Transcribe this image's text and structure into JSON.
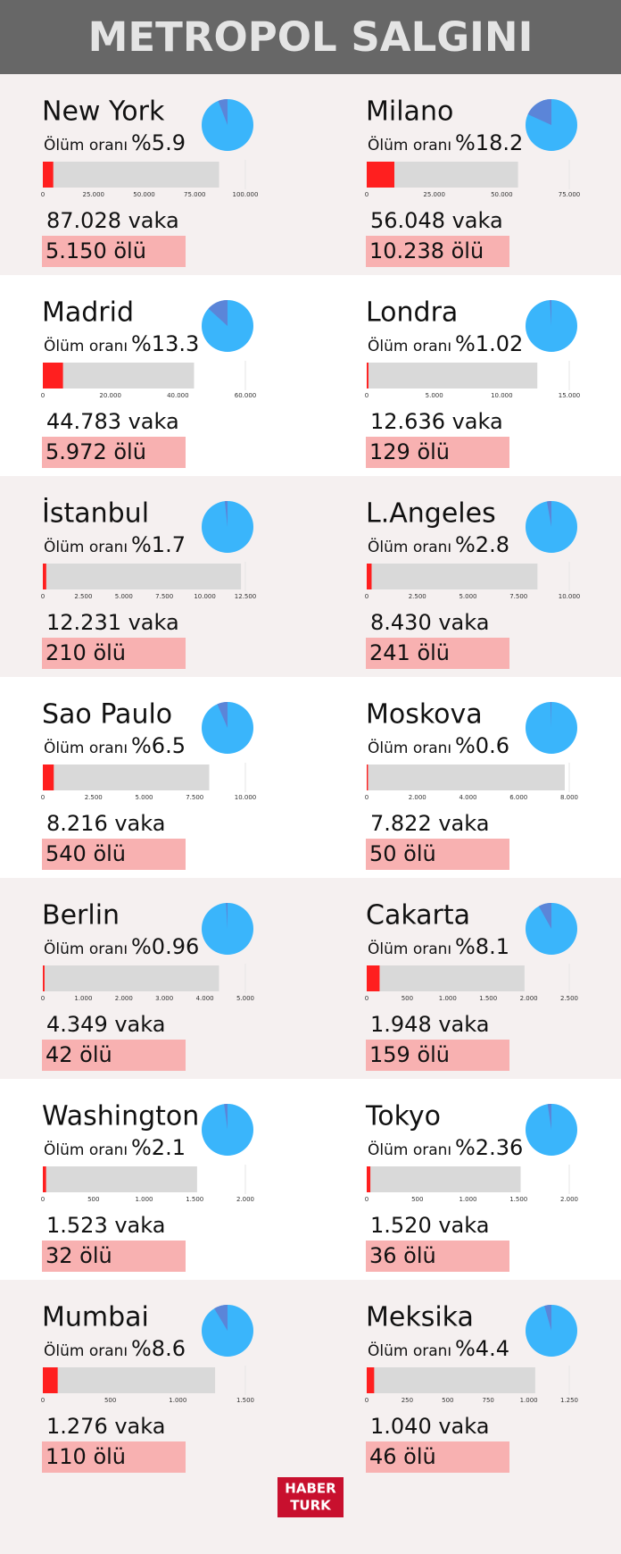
{
  "title": "METROPOL SALGINI",
  "logo": [
    "HABER",
    "TURK"
  ],
  "chart_data": [
    {
      "type": "bar",
      "title": "New York",
      "subtitle": "Ölüm oranı",
      "xlim": [
        0,
        100000
      ],
      "xticks": [
        0,
        {
          "value": 25000,
          "label": "25.000"
        },
        {
          "value": 50000,
          "label": "50.000"
        },
        {
          "value": 75000,
          "label": "75.000"
        },
        {
          "value": 100000,
          "label": "100.000"
        }
      ],
      "series": [
        {
          "color": "#d9d9d9",
          "values": [
            87028
          ],
          "value_labels": [
            "87.028 vaka"
          ]
        },
        {
          "color": "#ff1f1f",
          "values": [
            5150
          ],
          "value_labels": [
            "5.150 ölü"
          ]
        }
      ],
      "pie": {
        "values": [
          5.9
        ],
        "value_labels": [
          "%5.9"
        ],
        "colors": [
          "#5b85d8",
          "#3ab5fb"
        ]
      }
    },
    {
      "type": "bar",
      "title": "Milano",
      "subtitle": "Ölüm oranı",
      "xlim": [
        0,
        75000
      ],
      "xticks": [
        0,
        {
          "value": 25000,
          "label": "25.000"
        },
        {
          "value": 50000,
          "label": "50.000"
        },
        {
          "value": 75000,
          "label": "75.000"
        }
      ],
      "series": [
        {
          "color": "#d9d9d9",
          "values": [
            56048
          ],
          "value_labels": [
            "56.048 vaka"
          ]
        },
        {
          "color": "#ff1f1f",
          "values": [
            10238
          ],
          "value_labels": [
            "10.238 ölü"
          ]
        }
      ],
      "pie": {
        "values": [
          18.2
        ],
        "value_labels": [
          "%18.2"
        ],
        "colors": [
          "#5b85d8",
          "#3ab5fb"
        ]
      }
    },
    {
      "type": "bar",
      "title": "Madrid",
      "subtitle": "Ölüm oranı",
      "xlim": [
        0,
        60000
      ],
      "xticks": [
        0,
        {
          "value": 20000,
          "label": "20.000"
        },
        {
          "value": 40000,
          "label": "40.000"
        },
        {
          "value": 60000,
          "label": "60.000"
        }
      ],
      "series": [
        {
          "color": "#d9d9d9",
          "values": [
            44783
          ],
          "value_labels": [
            "44.783 vaka"
          ]
        },
        {
          "color": "#ff1f1f",
          "values": [
            5972
          ],
          "value_labels": [
            "5.972 ölü"
          ]
        }
      ],
      "pie": {
        "values": [
          13.3
        ],
        "value_labels": [
          "%13.3"
        ],
        "colors": [
          "#5b85d8",
          "#3ab5fb"
        ]
      }
    },
    {
      "type": "bar",
      "title": "Londra",
      "subtitle": "Ölüm oranı",
      "xlim": [
        0,
        15000
      ],
      "xticks": [
        0,
        {
          "value": 5000,
          "label": "5.000"
        },
        {
          "value": 10000,
          "label": "10.000"
        },
        {
          "value": 15000,
          "label": "15.000"
        }
      ],
      "series": [
        {
          "color": "#d9d9d9",
          "values": [
            12636
          ],
          "value_labels": [
            "12.636 vaka"
          ]
        },
        {
          "color": "#ff1f1f",
          "values": [
            129
          ],
          "value_labels": [
            "129 ölü"
          ]
        }
      ],
      "pie": {
        "values": [
          1.02
        ],
        "value_labels": [
          "%1.02"
        ],
        "colors": [
          "#5b85d8",
          "#3ab5fb"
        ]
      }
    },
    {
      "type": "bar",
      "title": "İstanbul",
      "subtitle": "Ölüm oranı",
      "xlim": [
        0,
        12500
      ],
      "xticks": [
        0,
        {
          "value": 2500,
          "label": "2.500"
        },
        {
          "value": 5000,
          "label": "5.000"
        },
        {
          "value": 7500,
          "label": "7.500"
        },
        {
          "value": 10000,
          "label": "10.000"
        },
        {
          "value": 12500,
          "label": "12.500"
        }
      ],
      "series": [
        {
          "color": "#d9d9d9",
          "values": [
            12231
          ],
          "value_labels": [
            "12.231 vaka"
          ]
        },
        {
          "color": "#ff1f1f",
          "values": [
            210
          ],
          "value_labels": [
            "210 ölü"
          ]
        }
      ],
      "pie": {
        "values": [
          1.7
        ],
        "value_labels": [
          "%1.7"
        ],
        "colors": [
          "#5b85d8",
          "#3ab5fb"
        ]
      }
    },
    {
      "type": "bar",
      "title": "L.Angeles",
      "subtitle": "Ölüm oranı",
      "xlim": [
        0,
        10000
      ],
      "xticks": [
        0,
        {
          "value": 2500,
          "label": "2.500"
        },
        {
          "value": 5000,
          "label": "5.000"
        },
        {
          "value": 7500,
          "label": "7.500"
        },
        {
          "value": 10000,
          "label": "10.000"
        }
      ],
      "series": [
        {
          "color": "#d9d9d9",
          "values": [
            8430
          ],
          "value_labels": [
            "8.430 vaka"
          ]
        },
        {
          "color": "#ff1f1f",
          "values": [
            241
          ],
          "value_labels": [
            "241 ölü"
          ]
        }
      ],
      "pie": {
        "values": [
          2.8
        ],
        "value_labels": [
          "%2.8"
        ],
        "colors": [
          "#5b85d8",
          "#3ab5fb"
        ]
      }
    },
    {
      "type": "bar",
      "title": "Sao Paulo",
      "subtitle": "Ölüm oranı",
      "xlim": [
        0,
        10000
      ],
      "xticks": [
        0,
        {
          "value": 2500,
          "label": "2.500"
        },
        {
          "value": 5000,
          "label": "5.000"
        },
        {
          "value": 7500,
          "label": "7.500"
        },
        {
          "value": 10000,
          "label": "10.000"
        }
      ],
      "series": [
        {
          "color": "#d9d9d9",
          "values": [
            8216
          ],
          "value_labels": [
            "8.216 vaka"
          ]
        },
        {
          "color": "#ff1f1f",
          "values": [
            540
          ],
          "value_labels": [
            "540 ölü"
          ]
        }
      ],
      "pie": {
        "values": [
          6.5
        ],
        "value_labels": [
          "%6.5"
        ],
        "colors": [
          "#5b85d8",
          "#3ab5fb"
        ]
      }
    },
    {
      "type": "bar",
      "title": "Moskova",
      "subtitle": "Ölüm oranı",
      "xlim": [
        0,
        8000
      ],
      "xticks": [
        0,
        {
          "value": 2000,
          "label": "2.000"
        },
        {
          "value": 4000,
          "label": "4.000"
        },
        {
          "value": 6000,
          "label": "6.000"
        },
        {
          "value": 8000,
          "label": "8.000"
        }
      ],
      "series": [
        {
          "color": "#d9d9d9",
          "values": [
            7822
          ],
          "value_labels": [
            "7.822 vaka"
          ]
        },
        {
          "color": "#ff1f1f",
          "values": [
            50
          ],
          "value_labels": [
            "50 ölü"
          ]
        }
      ],
      "pie": {
        "values": [
          0.6
        ],
        "value_labels": [
          "%0.6"
        ],
        "colors": [
          "#5b85d8",
          "#3ab5fb"
        ]
      }
    },
    {
      "type": "bar",
      "title": "Berlin",
      "subtitle": "Ölüm oranı",
      "xlim": [
        0,
        5000
      ],
      "xticks": [
        0,
        {
          "value": 1000,
          "label": "1.000"
        },
        {
          "value": 2000,
          "label": "2.000"
        },
        {
          "value": 3000,
          "label": "3.000"
        },
        {
          "value": 4000,
          "label": "4.000"
        },
        {
          "value": 5000,
          "label": "5.000"
        }
      ],
      "series": [
        {
          "color": "#d9d9d9",
          "values": [
            4349
          ],
          "value_labels": [
            "4.349 vaka"
          ]
        },
        {
          "color": "#ff1f1f",
          "values": [
            42
          ],
          "value_labels": [
            "42 ölü"
          ]
        }
      ],
      "pie": {
        "values": [
          0.96
        ],
        "value_labels": [
          "%0.96"
        ],
        "colors": [
          "#5b85d8",
          "#3ab5fb"
        ]
      }
    },
    {
      "type": "bar",
      "title": "Cakarta",
      "subtitle": "Ölüm oranı",
      "xlim": [
        0,
        2500
      ],
      "xticks": [
        0,
        500,
        {
          "value": 1000,
          "label": "1.000"
        },
        {
          "value": 1500,
          "label": "1.500"
        },
        {
          "value": 2000,
          "label": "2.000"
        },
        {
          "value": 2500,
          "label": "2.500"
        }
      ],
      "series": [
        {
          "color": "#d9d9d9",
          "values": [
            1948
          ],
          "value_labels": [
            "1.948 vaka"
          ]
        },
        {
          "color": "#ff1f1f",
          "values": [
            159
          ],
          "value_labels": [
            "159 ölü"
          ]
        }
      ],
      "pie": {
        "values": [
          8.1
        ],
        "value_labels": [
          "%8.1"
        ],
        "colors": [
          "#5b85d8",
          "#3ab5fb"
        ]
      }
    },
    {
      "type": "bar",
      "title": "Washington",
      "subtitle": "Ölüm oranı",
      "xlim": [
        0,
        2000
      ],
      "xticks": [
        0,
        500,
        {
          "value": 1000,
          "label": "1.000"
        },
        {
          "value": 1500,
          "label": "1.500"
        },
        {
          "value": 2000,
          "label": "2.000"
        }
      ],
      "series": [
        {
          "color": "#d9d9d9",
          "values": [
            1523
          ],
          "value_labels": [
            "1.523 vaka"
          ]
        },
        {
          "color": "#ff1f1f",
          "values": [
            32
          ],
          "value_labels": [
            "32 ölü"
          ]
        }
      ],
      "pie": {
        "values": [
          2.1
        ],
        "value_labels": [
          "%2.1"
        ],
        "colors": [
          "#5b85d8",
          "#3ab5fb"
        ]
      }
    },
    {
      "type": "bar",
      "title": "Tokyo",
      "subtitle": "Ölüm oranı",
      "xlim": [
        0,
        2000
      ],
      "xticks": [
        0,
        500,
        {
          "value": 1000,
          "label": "1.000"
        },
        {
          "value": 1500,
          "label": "1.500"
        },
        {
          "value": 2000,
          "label": "2.000"
        }
      ],
      "series": [
        {
          "color": "#d9d9d9",
          "values": [
            1520
          ],
          "value_labels": [
            "1.520 vaka"
          ]
        },
        {
          "color": "#ff1f1f",
          "values": [
            36
          ],
          "value_labels": [
            "36 ölü"
          ]
        }
      ],
      "pie": {
        "values": [
          2.36
        ],
        "value_labels": [
          "%2.36"
        ],
        "colors": [
          "#5b85d8",
          "#3ab5fb"
        ]
      }
    },
    {
      "type": "bar",
      "title": "Mumbai",
      "subtitle": "Ölüm oranı",
      "xlim": [
        0,
        1500
      ],
      "xticks": [
        0,
        500,
        {
          "value": 1000,
          "label": "1.000"
        },
        {
          "value": 1500,
          "label": "1.500"
        }
      ],
      "series": [
        {
          "color": "#d9d9d9",
          "values": [
            1276
          ],
          "value_labels": [
            "1.276 vaka"
          ]
        },
        {
          "color": "#ff1f1f",
          "values": [
            110
          ],
          "value_labels": [
            "110 ölü"
          ]
        }
      ],
      "pie": {
        "values": [
          8.6
        ],
        "value_labels": [
          "%8.6"
        ],
        "colors": [
          "#5b85d8",
          "#3ab5fb"
        ]
      }
    },
    {
      "type": "bar",
      "title": "Meksika",
      "subtitle": "Ölüm oranı",
      "xlim": [
        0,
        1250
      ],
      "xticks": [
        0,
        250,
        500,
        750,
        {
          "value": 1000,
          "label": "1.000"
        },
        {
          "value": 1250,
          "label": "1.250"
        }
      ],
      "series": [
        {
          "color": "#d9d9d9",
          "values": [
            1040
          ],
          "value_labels": [
            "1.040 vaka"
          ]
        },
        {
          "color": "#ff1f1f",
          "values": [
            46
          ],
          "value_labels": [
            "46 ölü"
          ]
        }
      ],
      "pie": {
        "values": [
          4.4
        ],
        "value_labels": [
          "%4.4"
        ],
        "colors": [
          "#5b85d8",
          "#3ab5fb"
        ]
      }
    }
  ]
}
